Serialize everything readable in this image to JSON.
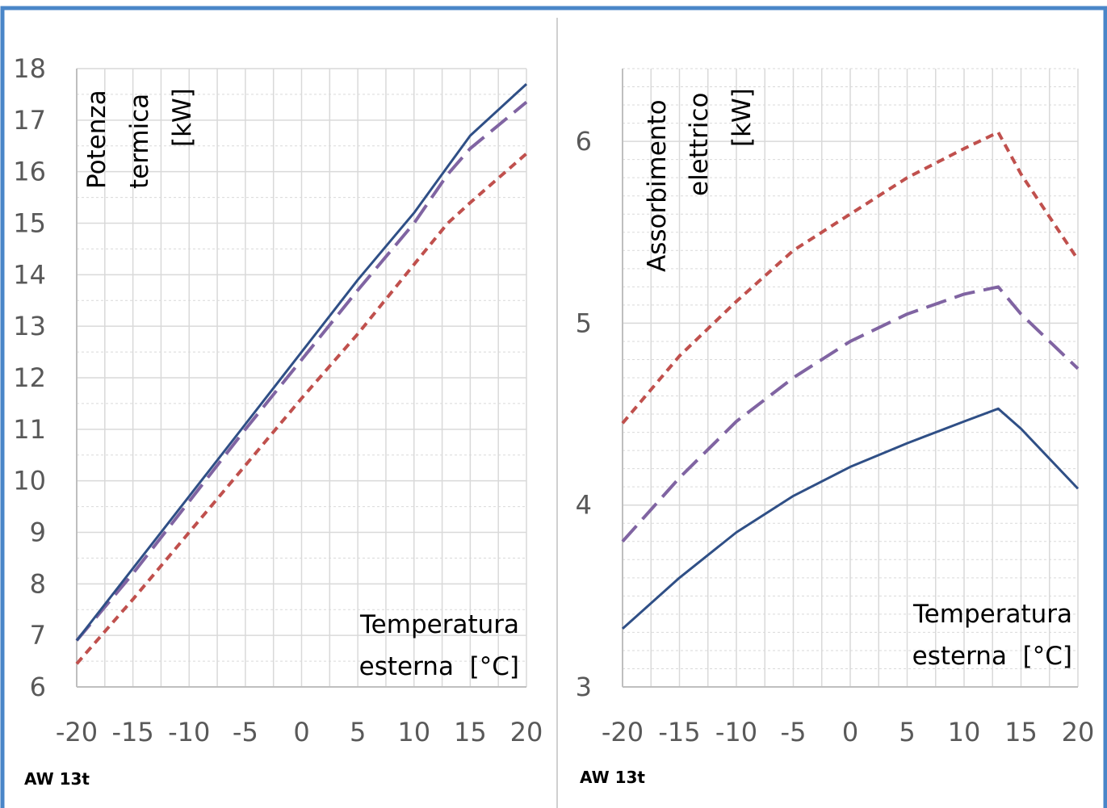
{
  "colors": {
    "frame_border": "#4a86c8",
    "grid": "#d9d9d9",
    "axis": "#bfbfbf",
    "series_solid": "#2f4f86",
    "series_dashed_purple": "#8064a2",
    "series_dashed_red": "#c0504d"
  },
  "chart_data": [
    {
      "type": "line",
      "title": "",
      "ylabel_lines": [
        "Potenza",
        "termica",
        "[kW]"
      ],
      "xlabel_lines": [
        "Temperatura",
        "esterna  [°C]"
      ],
      "model_label": "AW 13t",
      "xlim": [
        -20,
        20
      ],
      "ylim": [
        6,
        18
      ],
      "x_ticks": [
        -20,
        -15,
        -10,
        -5,
        0,
        5,
        10,
        15,
        20
      ],
      "y_ticks": [
        6,
        7,
        8,
        9,
        10,
        11,
        12,
        13,
        14,
        15,
        16,
        17,
        18
      ],
      "x_tick_labels": [
        "-20",
        "-15",
        "-10",
        "-5",
        "0",
        "5",
        "10",
        "15",
        "20"
      ],
      "y_tick_labels": [
        "6",
        "7",
        "8",
        "9",
        "10",
        "11",
        "12",
        "13",
        "14",
        "15",
        "16",
        "17",
        "18"
      ],
      "grid": true,
      "x": [
        -20,
        -15,
        -10,
        -5,
        0,
        5,
        10,
        13,
        15,
        20
      ],
      "series": [
        {
          "style": "solid",
          "values": [
            6.9,
            8.3,
            9.7,
            11.1,
            12.5,
            13.9,
            15.2,
            16.1,
            16.7,
            17.7
          ]
        },
        {
          "style": "long-dash",
          "values": [
            6.9,
            8.2,
            9.6,
            11.0,
            12.35,
            13.7,
            15.0,
            15.95,
            16.45,
            17.35
          ]
        },
        {
          "style": "short-dash",
          "values": [
            6.45,
            7.7,
            9.0,
            10.3,
            11.6,
            12.85,
            14.2,
            15.0,
            15.4,
            16.35
          ]
        }
      ]
    },
    {
      "type": "line",
      "title": "",
      "ylabel_lines": [
        "Assorbimento",
        "elettrico",
        "[kW]"
      ],
      "xlabel_lines": [
        "Temperatura",
        "esterna  [°C]"
      ],
      "model_label": "AW 13t",
      "xlim": [
        -20,
        20
      ],
      "ylim": [
        3,
        6.4
      ],
      "x_ticks": [
        -20,
        -15,
        -10,
        -5,
        0,
        5,
        10,
        15,
        20
      ],
      "y_ticks": [
        3,
        4,
        5,
        6
      ],
      "x_tick_labels": [
        "-20",
        "-15",
        "-10",
        "-5",
        "0",
        "5",
        "10",
        "15",
        "20"
      ],
      "y_tick_labels": [
        "3",
        "4",
        "5",
        "6"
      ],
      "grid": true,
      "x": [
        -20,
        -15,
        -10,
        -5,
        0,
        5,
        10,
        13,
        15,
        20
      ],
      "series": [
        {
          "style": "solid",
          "values": [
            3.32,
            3.6,
            3.85,
            4.05,
            4.21,
            4.34,
            4.46,
            4.53,
            4.42,
            4.09
          ]
        },
        {
          "style": "long-dash",
          "values": [
            3.8,
            4.15,
            4.46,
            4.7,
            4.9,
            5.05,
            5.16,
            5.2,
            5.05,
            4.75
          ]
        },
        {
          "style": "short-dash",
          "values": [
            4.45,
            4.82,
            5.12,
            5.4,
            5.6,
            5.8,
            5.96,
            6.05,
            5.82,
            5.35
          ]
        }
      ]
    }
  ]
}
